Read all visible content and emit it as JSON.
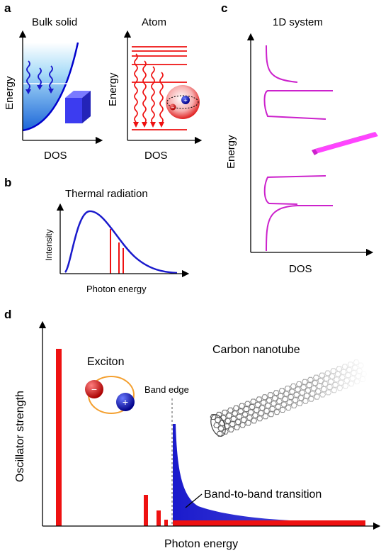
{
  "panels": {
    "a": {
      "letter": "a",
      "bulk": {
        "title": "Bulk solid",
        "ylabel": "Energy",
        "xlabel": "DOS"
      },
      "atom": {
        "title": "Atom",
        "ylabel": "Energy",
        "xlabel": "DOS"
      }
    },
    "b": {
      "letter": "b",
      "title": "Thermal radiation",
      "ylabel": "Intensity",
      "xlabel": "Photon energy"
    },
    "c": {
      "letter": "c",
      "title": "1D system",
      "ylabel": "Energy",
      "xlabel": "DOS"
    },
    "d": {
      "letter": "d",
      "ylabel": "Oscillator strength",
      "xlabel": "Photon energy",
      "exciton_label": "Exciton",
      "band_edge_label": "Band edge",
      "nanotube_label": "Carbon nanotube",
      "transition_label": "Band-to-band transition",
      "electron_sign": "−",
      "hole_sign": "+"
    }
  },
  "colors": {
    "red": "#ee1111",
    "blue": "#1a1acc",
    "magenta": "#cc22cc",
    "cube": "#3c3cf0"
  }
}
